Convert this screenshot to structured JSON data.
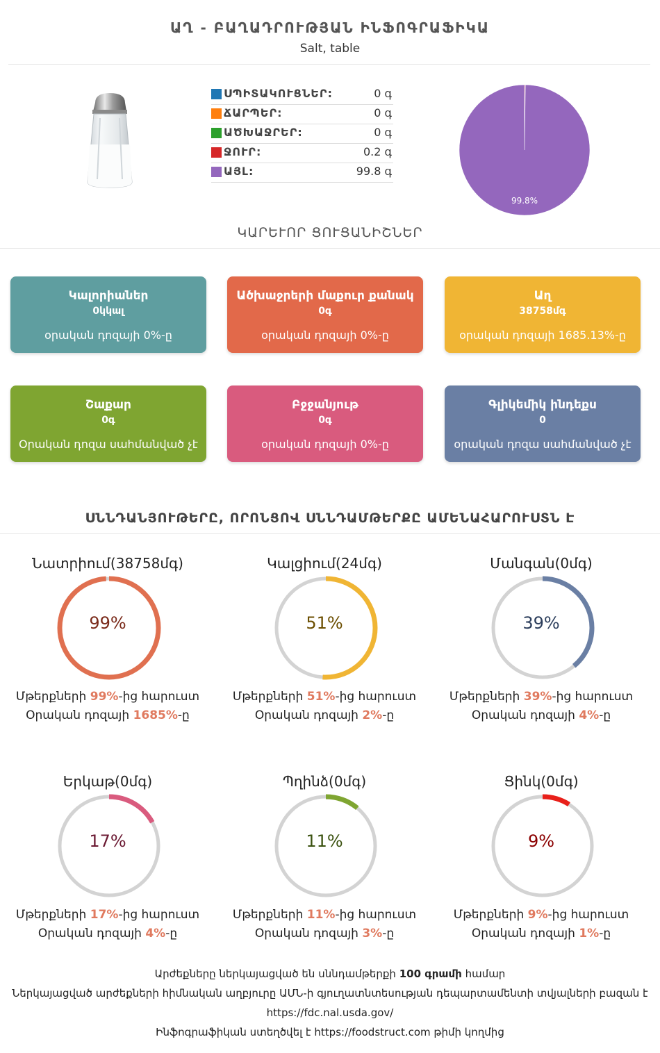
{
  "header": {
    "title": "ԱՂ - ԲԱՂԱԴՐՈՒԹՅԱՆ ԻՆՖՈԳՐԱՖԻԿԱ",
    "subtitle": "Salt, table"
  },
  "macros": [
    {
      "label": "ՍՊԻՏԱԿՈՒՑՆԵՐ:",
      "value": "0 գ",
      "color": "#1f77b4"
    },
    {
      "label": "ՃԱՐՊԵՐ:",
      "value": "0 գ",
      "color": "#ff7f0e"
    },
    {
      "label": "ԱԾԽԱՋՐԵՐ:",
      "value": "0 գ",
      "color": "#2ca02c"
    },
    {
      "label": "ՋՈՒՐ:",
      "value": "0.2 գ",
      "color": "#d62728"
    },
    {
      "label": "ԱՅԼ:",
      "value": "99.8 գ",
      "color": "#9467bd"
    }
  ],
  "chart_data": {
    "type": "pie",
    "categories": [
      "ՍՊԻՏԱԿՈՒՑՆԵՐ",
      "ՃԱՐՊԵՐ",
      "ԱԾԽԱՋՐԵՐ",
      "ՋՈՒՐ",
      "ԱՅԼ"
    ],
    "values": [
      0,
      0,
      0,
      0.2,
      99.8
    ],
    "colors": [
      "#1f77b4",
      "#ff7f0e",
      "#2ca02c",
      "#d62728",
      "#9467bd"
    ],
    "data_label": "99.8%"
  },
  "key_values_title": "ԿԱՐԵՒՈՐ ՑՈՒՑԱՆԻՇՆԵՐ",
  "cards": [
    {
      "title": "Կալորիաներ",
      "value": "0կկալ",
      "sub": "օրական դոզայի 0%-ը",
      "color": "#5f9ea0"
    },
    {
      "title": "Ածխաջրերի մաքուր քանակ",
      "value": "0գ",
      "sub": "օրական դոզայի 0%-ը",
      "color": "#e2694a"
    },
    {
      "title": "Աղ",
      "value": "38758մգ",
      "sub": "օրական դոզայի 1685.13%-ը",
      "color": "#f0b534"
    },
    {
      "title": "Շաքար",
      "value": "0գ",
      "sub": "Օրական դոզա սահմանված չէ",
      "color": "#7fa531"
    },
    {
      "title": "Բջջանյութ",
      "value": "0գ",
      "sub": "օրական դոզայի 0%-ը",
      "color": "#d95b7e"
    },
    {
      "title": "Գլիկեմիկ ինդեքս",
      "value": "0",
      "sub": "օրական դոզա սահմանված չէ",
      "color": "#6a7fa4"
    }
  ],
  "nutrients_title": "ՍՆՆԴԱՆՅՈՒԹԵՐԸ, ՈՐՈՆՑՈՎ ՍՆՆԴԱՄԹԵՐՔԸ ԱՄԵՆԱՀԱՐՈՒՍՏՆ Է",
  "nutrients": [
    {
      "title": "Նատրիում(38758մգ)",
      "pct": "99%",
      "fraction": 0.99,
      "color": "#e07050",
      "text_color": "#7a2a1a",
      "l1a": "Մթերքների ",
      "l1b": "99%",
      "l1c": "-ից հարուստ",
      "l2a": "Օրական դոզայի ",
      "l2b": "1685%",
      "l2c": "-ը"
    },
    {
      "title": "Կալցիում(24մգ)",
      "pct": "51%",
      "fraction": 0.51,
      "color": "#f0b534",
      "text_color": "#6b4e00",
      "l1a": "Մթերքների ",
      "l1b": "51%",
      "l1c": "-ից հարուստ",
      "l2a": "Օրական դոզայի ",
      "l2b": "2%",
      "l2c": "-ը"
    },
    {
      "title": "Մանգան(0մգ)",
      "pct": "39%",
      "fraction": 0.39,
      "color": "#6a7fa4",
      "text_color": "#2c3e5c",
      "l1a": "Մթերքների ",
      "l1b": "39%",
      "l1c": "-ից հարուստ",
      "l2a": "Օրական դոզայի ",
      "l2b": "4%",
      "l2c": "-ը"
    },
    {
      "title": "Երկաթ(0մգ)",
      "pct": "17%",
      "fraction": 0.17,
      "color": "#d95b7e",
      "text_color": "#6b1a33",
      "l1a": "Մթերքների ",
      "l1b": "17%",
      "l1c": "-ից հարուստ",
      "l2a": "Օրական դոզայի ",
      "l2b": "4%",
      "l2c": "-ը"
    },
    {
      "title": "Պղինձ(0մգ)",
      "pct": "11%",
      "fraction": 0.11,
      "color": "#7fa531",
      "text_color": "#3b5210",
      "l1a": "Մթերքների ",
      "l1b": "11%",
      "l1c": "-ից հարուստ",
      "l2a": "Օրական դոզայի ",
      "l2b": "3%",
      "l2c": "-ը"
    },
    {
      "title": "Ցինկ(0մգ)",
      "pct": "9%",
      "fraction": 0.09,
      "color": "#e8201a",
      "text_color": "#8b0000",
      "l1a": "Մթերքների ",
      "l1b": "9%",
      "l1c": "-ից հարուստ",
      "l2a": "Օրական դոզայի ",
      "l2b": "1%",
      "l2c": "-ը"
    }
  ],
  "footer": {
    "line1a": "Արժեքները ներկայացված են սննդամթերքի ",
    "line1b": "100 գրամի",
    "line1c": " համար",
    "line2": "Ներկայացված արժեքների հիմնական աղբյուրը ԱՄՆ-ի գյուղատնտեսության դեպարտամենտի տվյալների բազան է",
    "line3": "https://fdc.nal.usda.gov/",
    "line4a": "Ինֆոգրաֆիկան ստեղծվել է ",
    "line4b": "https://foodstruct.com",
    "line4c": " թիմի կողմից"
  }
}
